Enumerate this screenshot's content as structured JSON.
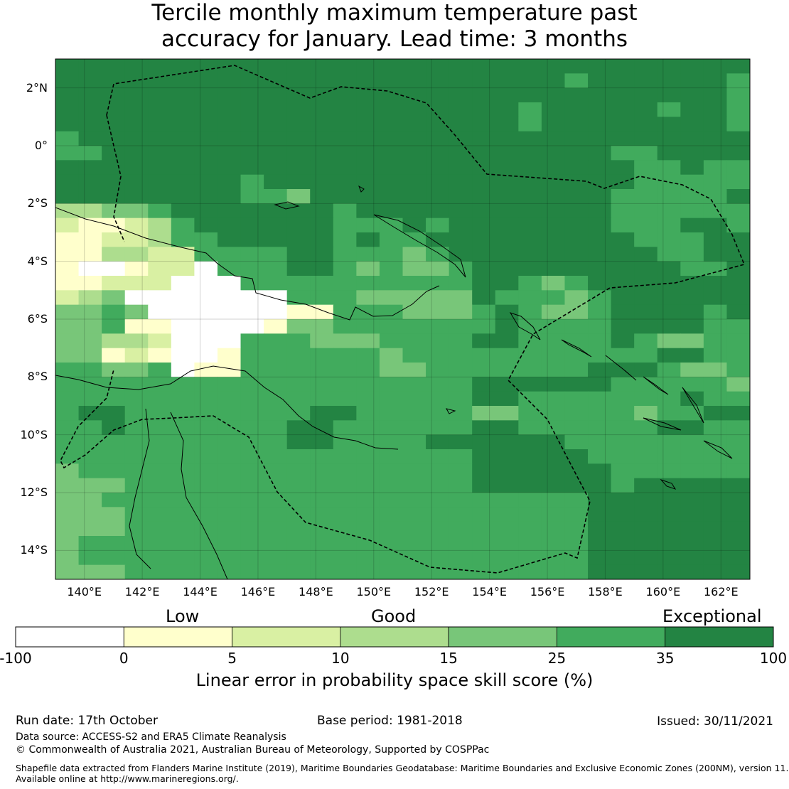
{
  "title": {
    "line1": "Tercile monthly maximum temperature past",
    "line2": "accuracy for January. Lead time: 3 months"
  },
  "map": {
    "lon_range": [
      139.0,
      163.0
    ],
    "lat_range": [
      -15.0,
      3.0
    ],
    "lon_ticks": [
      {
        "value": 140,
        "label": "140°E"
      },
      {
        "value": 142,
        "label": "142°E"
      },
      {
        "value": 144,
        "label": "144°E"
      },
      {
        "value": 146,
        "label": "146°E"
      },
      {
        "value": 148,
        "label": "148°E"
      },
      {
        "value": 150,
        "label": "150°E"
      },
      {
        "value": 152,
        "label": "152°E"
      },
      {
        "value": 154,
        "label": "154°E"
      },
      {
        "value": 156,
        "label": "156°E"
      },
      {
        "value": 158,
        "label": "158°E"
      },
      {
        "value": 160,
        "label": "160°E"
      },
      {
        "value": 162,
        "label": "162°E"
      }
    ],
    "lat_ticks": [
      {
        "value": 2,
        "label": "2°N"
      },
      {
        "value": 0,
        "label": "0°"
      },
      {
        "value": -2,
        "label": "2°S"
      },
      {
        "value": -4,
        "label": "4°S"
      },
      {
        "value": -6,
        "label": "6°S"
      },
      {
        "value": -8,
        "label": "8°S"
      },
      {
        "value": -10,
        "label": "10°S"
      },
      {
        "value": -12,
        "label": "12°S"
      },
      {
        "value": -14,
        "label": "14°S"
      }
    ],
    "skill_grid_note": "categories: 0 <0, 1 0-5, 2 5-10, 3 10-15, 4 15-25, 5 25-35, 6 35-100",
    "skill_grid_rows_north_to_south": [
      "666666666666666666666666666666",
      "666666666666666666666656666665",
      "666666666666666666666666666665",
      "666666666666666666665666665665",
      "666666666666666666665666666665",
      "566666666666666666666666666666",
      "556666666666666666666666556666",
      "666666666666666666666666655655",
      "666666665666666666666666655555",
      "666666665546666666666666555556",
      "334456666666566666666666555555",
      "211235666666555656666666555665",
      "112235566666565566666666655566",
      "113322555566555456666666665566",
      "100122055566545445666666666556",
      "112220005555555555665456666666",
      "234000000055544444655545666666",
      "445400000011555444565445666656",
      "445110000144555555565555666655",
      "443320005554445555665555654455",
      "441210015555554555555555556655",
      "554450115555554455555556665445",
      "555555555555555555666666555554",
      "555555555555555555665555555655",
      "566555555556655555445555545566",
      "556555555566555555665555556655",
      "555555555566555566666655555555",
      "555555555555555555666665555555",
      "455555555555555555666666555555",
      "444555555555555555666666566666",
      "445555555555555555555556666666",
      "444555555555555555555556666666",
      "444555555555555555555556666666",
      "455555555555555555555556666666",
      "455555555555555555555556666666",
      "444555555555555555555556666666"
    ]
  },
  "colorbar": {
    "categories": [
      {
        "label": "Low"
      },
      {
        "label": "Good"
      },
      {
        "label": "Exceptional"
      }
    ],
    "bins": [
      {
        "from": "-100",
        "to": "0",
        "color": "#ffffff"
      },
      {
        "from": "0",
        "to": "5",
        "color": "#ffffcc"
      },
      {
        "from": "5",
        "to": "10",
        "color": "#d9f0a3"
      },
      {
        "from": "10",
        "to": "15",
        "color": "#addd8e"
      },
      {
        "from": "15",
        "to": "25",
        "color": "#78c679"
      },
      {
        "from": "25",
        "to": "35",
        "color": "#41ab5d"
      },
      {
        "from": "35",
        "to": "100",
        "color": "#238443"
      }
    ],
    "ticks": [
      "-100",
      "0",
      "5",
      "10",
      "15",
      "25",
      "35",
      "100"
    ],
    "title": "Linear error in probability space skill score (%)"
  },
  "footer": {
    "run_date": "Run date: 17th October",
    "base_period": "Base period: 1981-2018",
    "issued": "Issued: 30/11/2021",
    "data_source": "Data source: ACCESS-S2 and ERA5 Climate Reanalysis",
    "copyright": "© Commonwealth of Australia 2021, Australian Bureau of Meteorology, Supported by COSPPac",
    "shapefile_line1": "Shapefile data extracted from Flanders Marine Institute (2019), Maritime Boundaries Geodatabase: Maritime Boundaries and Exclusive Economic Zones (200NM), version 11.",
    "shapefile_line2": "Available online at http://www.marineregions.org/."
  },
  "colors": {
    "cat0": "#ffffff",
    "cat1": "#ffffcc",
    "cat2": "#d9f0a3",
    "cat3": "#addd8e",
    "cat4": "#78c679",
    "cat5": "#41ab5d",
    "cat6": "#238443"
  }
}
